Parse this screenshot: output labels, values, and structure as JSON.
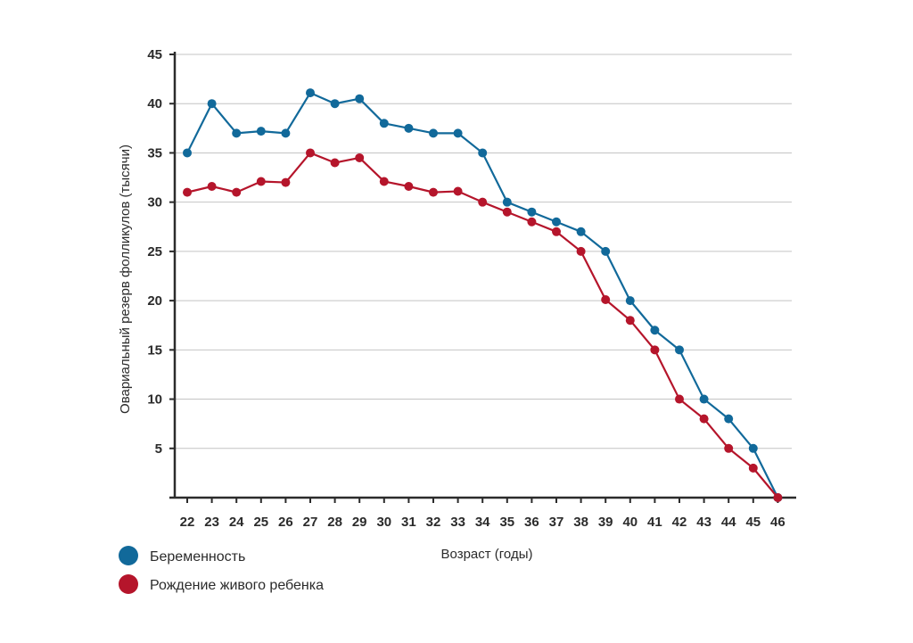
{
  "chart_data": {
    "type": "line",
    "xlabel": "Возраст (годы)",
    "ylabel": "Овариальный резерв фолликулов (тысячи)",
    "x": [
      22,
      23,
      24,
      25,
      26,
      27,
      28,
      29,
      30,
      31,
      32,
      33,
      34,
      35,
      36,
      37,
      38,
      39,
      40,
      41,
      42,
      43,
      44,
      45,
      46
    ],
    "ylim": [
      0,
      45
    ],
    "yticks": [
      5,
      10,
      15,
      20,
      25,
      30,
      35,
      40,
      45
    ],
    "grid": true,
    "legend_position": "bottom-left",
    "series": [
      {
        "name": "Беременность",
        "color": "#11699a",
        "values": [
          35,
          40,
          37,
          37.2,
          37,
          41.1,
          40,
          40.5,
          38,
          37.5,
          37,
          37,
          35,
          30,
          29,
          28,
          27,
          25,
          20,
          17,
          15,
          10,
          8,
          5,
          0
        ]
      },
      {
        "name": "Рождение живого ребенка",
        "color": "#b5152b",
        "values": [
          31,
          31.6,
          31,
          32.1,
          32,
          35,
          34,
          34.5,
          32.1,
          31.6,
          31,
          31.1,
          30,
          29,
          28,
          27,
          25,
          20.1,
          18,
          15,
          10,
          8,
          5,
          3,
          0
        ]
      }
    ]
  }
}
